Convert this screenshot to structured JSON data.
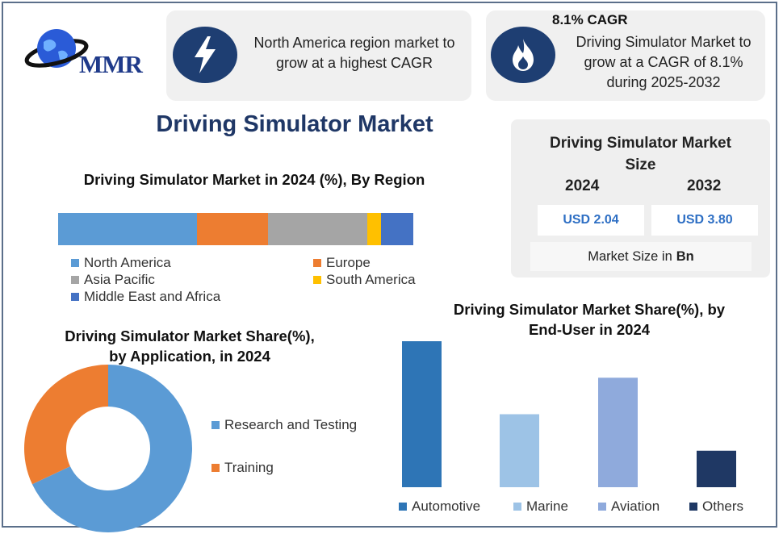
{
  "brand": {
    "logo_text": "MMR"
  },
  "card_region": {
    "text_line1": "North America region market to",
    "text_line2": "grow at a highest CAGR",
    "icon": "lightning-icon"
  },
  "card_cagr": {
    "title": "8.1% CAGR",
    "text_line1": "Driving Simulator Market to",
    "text_line2": "grow at a CAGR of 8.1%",
    "text_line3": "during 2025-2032",
    "icon": "flame-icon"
  },
  "main_title": "Driving Simulator Market",
  "market_size": {
    "title_line1": "Driving Simulator Market",
    "title_line2": "Size",
    "year_a": "2024",
    "year_b": "2032",
    "value_a": "USD 2.04",
    "value_b": "USD 3.80",
    "unit_prefix": "Market Size in",
    "unit_bold": "Bn"
  },
  "colors": {
    "north_america": "#5b9bd5",
    "europe": "#ed7d31",
    "asia_pacific": "#a5a5a5",
    "south_america": "#ffc000",
    "mea": "#4472c4",
    "research": "#5b9bd5",
    "training": "#ed7d31",
    "automotive": "#2e75b6",
    "marine": "#9dc3e6",
    "aviation": "#8faadc",
    "others": "#1f3864"
  },
  "chart_data": [
    {
      "type": "bar",
      "orientation": "horizontal-stacked",
      "title": "Driving Simulator Market in 2024 (%), By Region",
      "series": [
        {
          "name": "North America",
          "value": 39
        },
        {
          "name": "Europe",
          "value": 20
        },
        {
          "name": "Asia Pacific",
          "value": 28
        },
        {
          "name": "South America",
          "value": 4
        },
        {
          "name": "Middle East and Africa",
          "value": 9
        }
      ],
      "legend": "bottom"
    },
    {
      "type": "pie",
      "variant": "donut",
      "title_line1": "Driving Simulator Market Share(%),",
      "title_line2": "by Application, in 2024",
      "slices": [
        {
          "name": "Research and Testing",
          "value": 68
        },
        {
          "name": "Training",
          "value": 32
        }
      ],
      "legend": "right"
    },
    {
      "type": "bar",
      "title_line1": "Driving Simulator Market Share(%), by",
      "title_line2": "End-User in 2024",
      "categories": [
        "Automotive",
        "Marine",
        "Aviation",
        "Others"
      ],
      "values": [
        100,
        50,
        75,
        25
      ],
      "legend": "bottom",
      "grid": false
    }
  ]
}
